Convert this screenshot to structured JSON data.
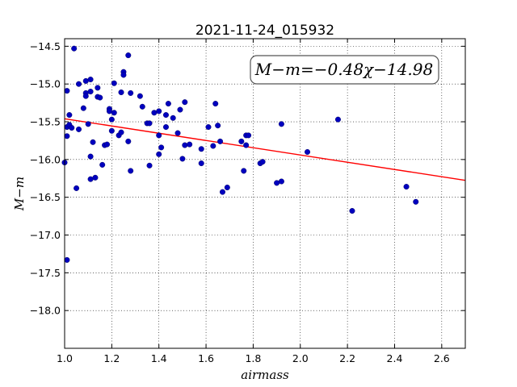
{
  "chart_data": {
    "type": "scatter",
    "title": "2021-11-24_015932",
    "xlabel": "airmass",
    "ylabel": "M−m",
    "xlim": [
      1.0,
      2.7
    ],
    "ylim": [
      -18.5,
      -14.4
    ],
    "y_inverted": true,
    "x_ticks": [
      "1.0",
      "1.2",
      "1.4",
      "1.6",
      "1.8",
      "2.0",
      "2.2",
      "2.4",
      "2.6"
    ],
    "x_tick_values": [
      1.0,
      1.2,
      1.4,
      1.6,
      1.8,
      2.0,
      2.2,
      2.4,
      2.6
    ],
    "y_ticks": [
      "−14.5",
      "−15.0",
      "−15.5",
      "−16.0",
      "−16.5",
      "−17.0",
      "−17.5",
      "−18.0"
    ],
    "y_tick_values": [
      -14.5,
      -15.0,
      -15.5,
      -16.0,
      -16.5,
      -17.0,
      -17.5,
      -18.0
    ],
    "grid": true,
    "annotation": "M−m=−0.48χ−14.98",
    "fit_line": {
      "slope": -0.48,
      "intercept": -14.98,
      "color": "#ff0000"
    },
    "marker_color": "#0000bf",
    "series": [
      {
        "points": [
          [
            1.0,
            -16.04
          ],
          [
            1.01,
            -15.57
          ],
          [
            1.01,
            -15.69
          ],
          [
            1.01,
            -17.33
          ],
          [
            1.01,
            -15.09
          ],
          [
            1.02,
            -15.41
          ],
          [
            1.02,
            -15.54
          ],
          [
            1.03,
            -15.58
          ],
          [
            1.04,
            -14.53
          ],
          [
            1.05,
            -16.38
          ],
          [
            1.06,
            -15.6
          ],
          [
            1.06,
            -15.0
          ],
          [
            1.08,
            -15.32
          ],
          [
            1.09,
            -14.96
          ],
          [
            1.09,
            -15.12
          ],
          [
            1.09,
            -15.16
          ],
          [
            1.1,
            -15.53
          ],
          [
            1.11,
            -14.94
          ],
          [
            1.11,
            -15.1
          ],
          [
            1.11,
            -15.96
          ],
          [
            1.11,
            -16.26
          ],
          [
            1.12,
            -15.77
          ],
          [
            1.13,
            -16.24
          ],
          [
            1.14,
            -15.05
          ],
          [
            1.14,
            -15.17
          ],
          [
            1.15,
            -15.18
          ],
          [
            1.16,
            -16.07
          ],
          [
            1.17,
            -15.81
          ],
          [
            1.18,
            -15.8
          ],
          [
            1.19,
            -15.33
          ],
          [
            1.19,
            -15.36
          ],
          [
            1.2,
            -15.47
          ],
          [
            1.2,
            -15.62
          ],
          [
            1.21,
            -14.99
          ],
          [
            1.21,
            -15.38
          ],
          [
            1.23,
            -15.68
          ],
          [
            1.24,
            -15.11
          ],
          [
            1.24,
            -15.64
          ],
          [
            1.25,
            -14.84
          ],
          [
            1.25,
            -14.88
          ],
          [
            1.27,
            -14.62
          ],
          [
            1.27,
            -15.76
          ],
          [
            1.28,
            -15.12
          ],
          [
            1.28,
            -16.15
          ],
          [
            1.32,
            -15.16
          ],
          [
            1.33,
            -15.3
          ],
          [
            1.35,
            -15.52
          ],
          [
            1.36,
            -15.52
          ],
          [
            1.36,
            -16.08
          ],
          [
            1.38,
            -15.38
          ],
          [
            1.4,
            -15.36
          ],
          [
            1.4,
            -15.68
          ],
          [
            1.4,
            -15.93
          ],
          [
            1.41,
            -15.84
          ],
          [
            1.43,
            -15.41
          ],
          [
            1.43,
            -15.57
          ],
          [
            1.44,
            -15.26
          ],
          [
            1.46,
            -15.45
          ],
          [
            1.48,
            -15.65
          ],
          [
            1.49,
            -15.34
          ],
          [
            1.5,
            -15.99
          ],
          [
            1.51,
            -15.24
          ],
          [
            1.51,
            -15.81
          ],
          [
            1.53,
            -15.8
          ],
          [
            1.58,
            -16.05
          ],
          [
            1.58,
            -15.86
          ],
          [
            1.61,
            -15.57
          ],
          [
            1.63,
            -15.82
          ],
          [
            1.64,
            -15.26
          ],
          [
            1.65,
            -15.55
          ],
          [
            1.66,
            -15.76
          ],
          [
            1.67,
            -16.43
          ],
          [
            1.69,
            -16.37
          ],
          [
            1.75,
            -15.76
          ],
          [
            1.76,
            -16.15
          ],
          [
            1.77,
            -15.68
          ],
          [
            1.77,
            -15.81
          ],
          [
            1.78,
            -15.68
          ],
          [
            1.83,
            -16.05
          ],
          [
            1.84,
            -16.03
          ],
          [
            1.9,
            -16.31
          ],
          [
            1.92,
            -15.53
          ],
          [
            1.92,
            -16.29
          ],
          [
            2.03,
            -15.9
          ],
          [
            2.16,
            -15.47
          ],
          [
            2.22,
            -16.68
          ],
          [
            2.45,
            -16.36
          ],
          [
            2.49,
            -16.56
          ]
        ]
      }
    ]
  }
}
